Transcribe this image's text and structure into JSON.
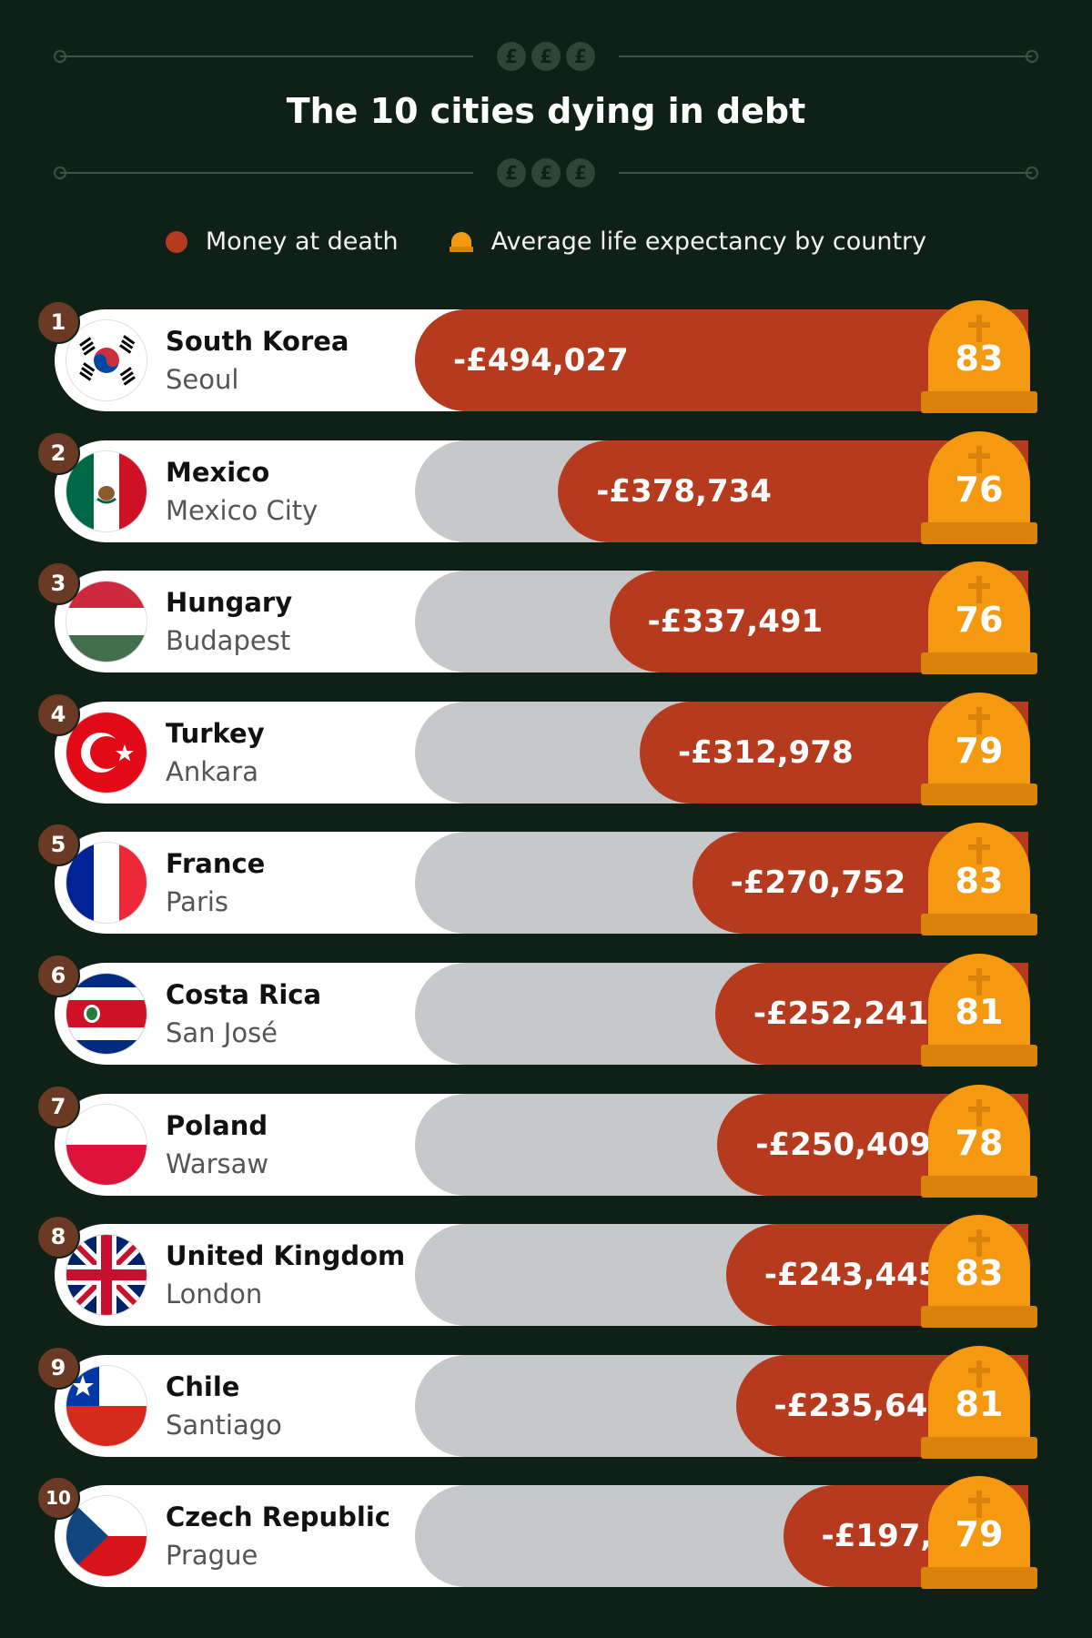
{
  "chart_data": {
    "type": "bar",
    "title": "The 10 cities dying in debt",
    "legend": [
      {
        "label": "Money at death",
        "color": "#b53a1e",
        "shape": "dot"
      },
      {
        "label": "Average life expectancy by country",
        "color": "#f59a10",
        "shape": "tombstone"
      }
    ],
    "value_max": 494027,
    "rows": [
      {
        "rank": "1",
        "country": "South Korea",
        "city": "Seoul",
        "value": -494027,
        "value_label": "-£494,027",
        "life_expectancy": "83",
        "flag": "south-korea"
      },
      {
        "rank": "2",
        "country": "Mexico",
        "city": "Mexico City",
        "value": -378734,
        "value_label": "-£378,734",
        "life_expectancy": "76",
        "flag": "mexico"
      },
      {
        "rank": "3",
        "country": "Hungary",
        "city": "Budapest",
        "value": -337491,
        "value_label": "-£337,491",
        "life_expectancy": "76",
        "flag": "hungary"
      },
      {
        "rank": "4",
        "country": "Turkey",
        "city": "Ankara",
        "value": -312978,
        "value_label": "-£312,978",
        "life_expectancy": "79",
        "flag": "turkey"
      },
      {
        "rank": "5",
        "country": "France",
        "city": "Paris",
        "value": -270752,
        "value_label": "-£270,752",
        "life_expectancy": "83",
        "flag": "france"
      },
      {
        "rank": "6",
        "country": "Costa Rica",
        "city": "San José",
        "value": -252241,
        "value_label": "-£252,241",
        "life_expectancy": "81",
        "flag": "costa-rica"
      },
      {
        "rank": "7",
        "country": "Poland",
        "city": "Warsaw",
        "value": -250409,
        "value_label": "-£250,409",
        "life_expectancy": "78",
        "flag": "poland"
      },
      {
        "rank": "8",
        "country": "United Kingdom",
        "city": "London",
        "value": -243445,
        "value_label": "-£243,445",
        "life_expectancy": "83",
        "flag": "united-kingdom"
      },
      {
        "rank": "9",
        "country": "Chile",
        "city": "Santiago",
        "value": -235646,
        "value_label": "-£235,646",
        "life_expectancy": "81",
        "flag": "chile"
      },
      {
        "rank": "10",
        "country": "Czech Republic",
        "city": "Prague",
        "value": -197429,
        "value_label": "-£197,429",
        "life_expectancy": "79",
        "flag": "czech-republic"
      }
    ]
  },
  "decoration": {
    "coin_symbol": "£"
  },
  "colors": {
    "background": "#0f2016",
    "bar": "#b53a1e",
    "track": "#c7c8ca",
    "tombstone": "#f59a10",
    "tombstone_base": "#d9830c",
    "rank_badge": "#6b3a24"
  }
}
